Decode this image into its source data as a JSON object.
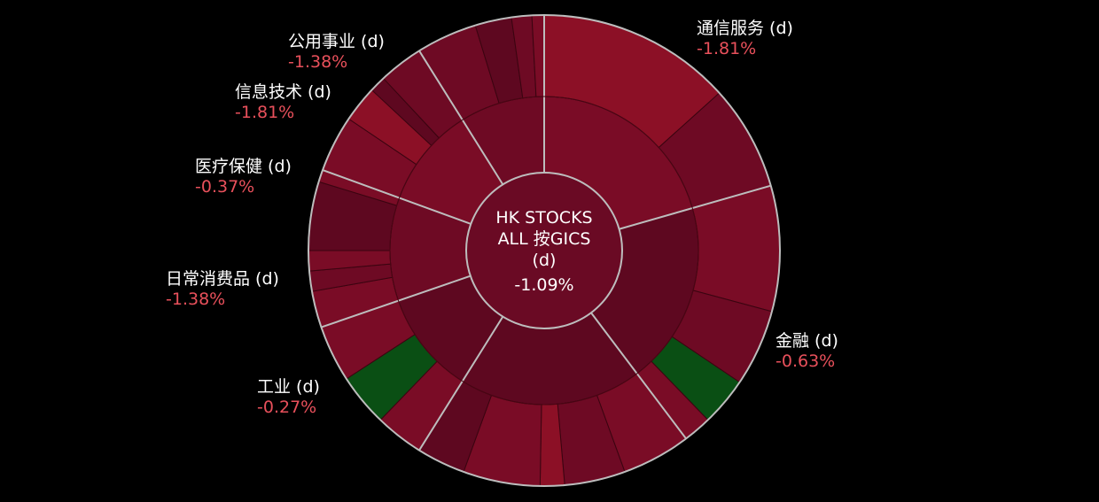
{
  "colors": {
    "background": "#000000",
    "negative_text": "#e8505b",
    "dark_red": "#5e0820",
    "mid_red": "#6e0a24",
    "red": "#7a0c26",
    "bright_red": "#8c1026",
    "green": "#0a4f14",
    "separator": "#bdbdbd"
  },
  "chart_data": {
    "type": "sunburst",
    "center": {
      "lines": [
        "HK STOCKS",
        "ALL 按GICS",
        "(d)"
      ],
      "value": "-1.09%"
    },
    "sectors": [
      {
        "name": "通信服务 (d)",
        "change": "-1.81%"
      },
      {
        "name": "金融 (d)",
        "change": "-0.63%"
      },
      {
        "name": "工业 (d)",
        "change": "-0.27%"
      },
      {
        "name": "日常消费品 (d)",
        "change": "-1.38%"
      },
      {
        "name": "医疗保健 (d)",
        "change": "-0.37%"
      },
      {
        "name": "信息技术 (d)",
        "change": "-1.81%"
      },
      {
        "name": "公用事业 (d)",
        "change": "-1.38%"
      }
    ]
  }
}
